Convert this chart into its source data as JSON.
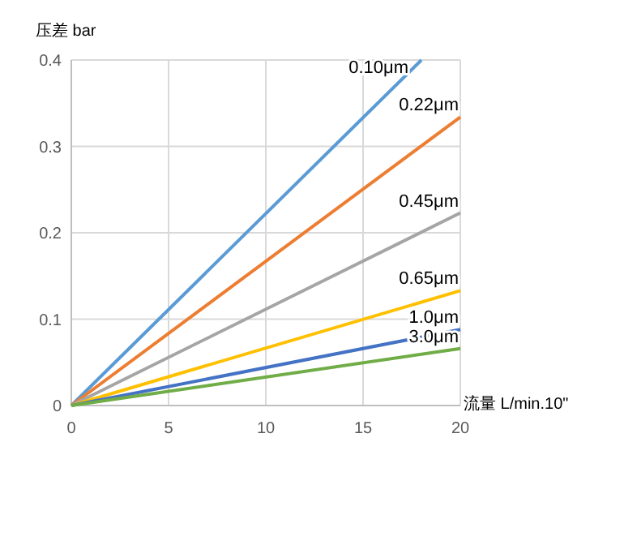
{
  "chart_data": {
    "type": "line",
    "ylabel": "压差 bar",
    "xlabel": "流量 L/min.10\"",
    "xlim": [
      0,
      20
    ],
    "ylim": [
      0,
      0.4
    ],
    "xticks": [
      0,
      5,
      10,
      15,
      20
    ],
    "yticks": [
      0,
      0.1,
      0.2,
      0.3,
      0.4
    ],
    "grid": true,
    "marker": "none",
    "line_style": "solid",
    "series": [
      {
        "name": "0.10μm",
        "color": "#5b9bd5",
        "x": [
          0,
          18
        ],
        "values": [
          0,
          0.4
        ]
      },
      {
        "name": "0.22μm",
        "color": "#ed7d31",
        "x": [
          0,
          20
        ],
        "values": [
          0,
          0.334
        ]
      },
      {
        "name": "0.45μm",
        "color": "#a5a5a5",
        "x": [
          0,
          20
        ],
        "values": [
          0,
          0.223
        ]
      },
      {
        "name": "0.65μm",
        "color": "#ffc000",
        "x": [
          0,
          20
        ],
        "values": [
          0,
          0.133
        ]
      },
      {
        "name": "1.0μm",
        "color": "#4472c4",
        "x": [
          0,
          20
        ],
        "values": [
          0,
          0.088
        ]
      },
      {
        "name": "3.0μm",
        "color": "#70ad47",
        "x": [
          0,
          20
        ],
        "values": [
          0,
          0.066
        ]
      }
    ]
  }
}
